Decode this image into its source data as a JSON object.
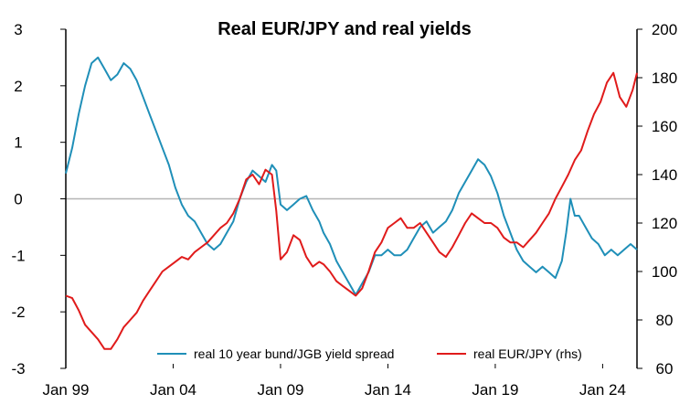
{
  "chart_data": {
    "type": "line",
    "title": "Real EUR/JPY and real yields",
    "x_tick_labels": [
      "Jan 99",
      "Jan 04",
      "Jan 09",
      "Jan 14",
      "Jan 19",
      "Jan 24"
    ],
    "x_range": [
      1999.0,
      2025.6
    ],
    "left_axis": {
      "range": [
        -3,
        3
      ],
      "ticks": [
        "3",
        "2",
        "1",
        "0",
        "-1",
        "-2",
        "-3"
      ]
    },
    "right_axis": {
      "range": [
        60,
        200
      ],
      "ticks": [
        "200",
        "180",
        "160",
        "140",
        "120",
        "100",
        "80",
        "60"
      ]
    },
    "zero_line": true,
    "legend_position": "bottom",
    "series": [
      {
        "name": "real 10 year bund/JGB yield spread",
        "axis": "left",
        "color": "#1f8fb8",
        "points": [
          [
            1999.0,
            0.45
          ],
          [
            1999.3,
            0.9
          ],
          [
            1999.6,
            1.5
          ],
          [
            1999.9,
            2.0
          ],
          [
            2000.2,
            2.4
          ],
          [
            2000.5,
            2.5
          ],
          [
            2000.8,
            2.3
          ],
          [
            2001.1,
            2.1
          ],
          [
            2001.4,
            2.2
          ],
          [
            2001.7,
            2.4
          ],
          [
            2002.0,
            2.3
          ],
          [
            2002.3,
            2.1
          ],
          [
            2002.6,
            1.8
          ],
          [
            2002.9,
            1.5
          ],
          [
            2003.2,
            1.2
          ],
          [
            2003.5,
            0.9
          ],
          [
            2003.8,
            0.6
          ],
          [
            2004.1,
            0.2
          ],
          [
            2004.4,
            -0.1
          ],
          [
            2004.7,
            -0.3
          ],
          [
            2005.0,
            -0.4
          ],
          [
            2005.3,
            -0.6
          ],
          [
            2005.6,
            -0.8
          ],
          [
            2005.9,
            -0.9
          ],
          [
            2006.2,
            -0.8
          ],
          [
            2006.5,
            -0.6
          ],
          [
            2006.8,
            -0.4
          ],
          [
            2007.1,
            0.0
          ],
          [
            2007.4,
            0.3
          ],
          [
            2007.7,
            0.5
          ],
          [
            2008.0,
            0.4
          ],
          [
            2008.3,
            0.3
          ],
          [
            2008.6,
            0.6
          ],
          [
            2008.8,
            0.5
          ],
          [
            2009.0,
            -0.1
          ],
          [
            2009.3,
            -0.2
          ],
          [
            2009.6,
            -0.1
          ],
          [
            2009.9,
            0.0
          ],
          [
            2010.2,
            0.05
          ],
          [
            2010.5,
            -0.2
          ],
          [
            2010.8,
            -0.4
          ],
          [
            2011.0,
            -0.6
          ],
          [
            2011.3,
            -0.8
          ],
          [
            2011.6,
            -1.1
          ],
          [
            2011.9,
            -1.3
          ],
          [
            2012.2,
            -1.5
          ],
          [
            2012.5,
            -1.7
          ],
          [
            2012.8,
            -1.5
          ],
          [
            2013.1,
            -1.3
          ],
          [
            2013.4,
            -1.0
          ],
          [
            2013.7,
            -1.0
          ],
          [
            2014.0,
            -0.9
          ],
          [
            2014.3,
            -1.0
          ],
          [
            2014.6,
            -1.0
          ],
          [
            2014.9,
            -0.9
          ],
          [
            2015.2,
            -0.7
          ],
          [
            2015.5,
            -0.5
          ],
          [
            2015.8,
            -0.4
          ],
          [
            2016.1,
            -0.6
          ],
          [
            2016.4,
            -0.5
          ],
          [
            2016.7,
            -0.4
          ],
          [
            2017.0,
            -0.2
          ],
          [
            2017.3,
            0.1
          ],
          [
            2017.6,
            0.3
          ],
          [
            2017.9,
            0.5
          ],
          [
            2018.2,
            0.7
          ],
          [
            2018.5,
            0.6
          ],
          [
            2018.8,
            0.4
          ],
          [
            2019.1,
            0.1
          ],
          [
            2019.4,
            -0.3
          ],
          [
            2019.7,
            -0.6
          ],
          [
            2020.0,
            -0.9
          ],
          [
            2020.3,
            -1.1
          ],
          [
            2020.6,
            -1.2
          ],
          [
            2020.9,
            -1.3
          ],
          [
            2021.2,
            -1.2
          ],
          [
            2021.5,
            -1.3
          ],
          [
            2021.8,
            -1.4
          ],
          [
            2022.1,
            -1.1
          ],
          [
            2022.3,
            -0.6
          ],
          [
            2022.5,
            0.0
          ],
          [
            2022.7,
            -0.3
          ],
          [
            2022.9,
            -0.3
          ],
          [
            2023.2,
            -0.5
          ],
          [
            2023.5,
            -0.7
          ],
          [
            2023.8,
            -0.8
          ],
          [
            2024.1,
            -1.0
          ],
          [
            2024.4,
            -0.9
          ],
          [
            2024.7,
            -1.0
          ],
          [
            2025.0,
            -0.9
          ],
          [
            2025.3,
            -0.8
          ],
          [
            2025.6,
            -0.9
          ]
        ]
      },
      {
        "name": "real EUR/JPY (rhs)",
        "axis": "right",
        "color": "#e01b1b",
        "points": [
          [
            1999.0,
            90
          ],
          [
            1999.3,
            89
          ],
          [
            1999.6,
            84
          ],
          [
            1999.9,
            78
          ],
          [
            2000.2,
            75
          ],
          [
            2000.5,
            72
          ],
          [
            2000.8,
            68
          ],
          [
            2001.1,
            68
          ],
          [
            2001.4,
            72
          ],
          [
            2001.7,
            77
          ],
          [
            2002.0,
            80
          ],
          [
            2002.3,
            83
          ],
          [
            2002.6,
            88
          ],
          [
            2002.9,
            92
          ],
          [
            2003.2,
            96
          ],
          [
            2003.5,
            100
          ],
          [
            2003.8,
            102
          ],
          [
            2004.1,
            104
          ],
          [
            2004.4,
            106
          ],
          [
            2004.7,
            105
          ],
          [
            2005.0,
            108
          ],
          [
            2005.3,
            110
          ],
          [
            2005.6,
            112
          ],
          [
            2005.9,
            115
          ],
          [
            2006.2,
            118
          ],
          [
            2006.5,
            120
          ],
          [
            2006.8,
            124
          ],
          [
            2007.1,
            130
          ],
          [
            2007.4,
            138
          ],
          [
            2007.7,
            140
          ],
          [
            2008.0,
            136
          ],
          [
            2008.3,
            142
          ],
          [
            2008.6,
            140
          ],
          [
            2008.8,
            125
          ],
          [
            2009.0,
            105
          ],
          [
            2009.3,
            108
          ],
          [
            2009.6,
            115
          ],
          [
            2009.9,
            113
          ],
          [
            2010.2,
            106
          ],
          [
            2010.5,
            102
          ],
          [
            2010.8,
            104
          ],
          [
            2011.0,
            103
          ],
          [
            2011.3,
            100
          ],
          [
            2011.6,
            96
          ],
          [
            2011.9,
            94
          ],
          [
            2012.2,
            92
          ],
          [
            2012.5,
            90
          ],
          [
            2012.8,
            93
          ],
          [
            2013.1,
            100
          ],
          [
            2013.4,
            108
          ],
          [
            2013.7,
            112
          ],
          [
            2014.0,
            118
          ],
          [
            2014.3,
            120
          ],
          [
            2014.6,
            122
          ],
          [
            2014.9,
            118
          ],
          [
            2015.2,
            118
          ],
          [
            2015.5,
            120
          ],
          [
            2015.8,
            116
          ],
          [
            2016.1,
            112
          ],
          [
            2016.4,
            108
          ],
          [
            2016.7,
            106
          ],
          [
            2017.0,
            110
          ],
          [
            2017.3,
            115
          ],
          [
            2017.6,
            120
          ],
          [
            2017.9,
            124
          ],
          [
            2018.2,
            122
          ],
          [
            2018.5,
            120
          ],
          [
            2018.8,
            120
          ],
          [
            2019.1,
            118
          ],
          [
            2019.4,
            114
          ],
          [
            2019.7,
            112
          ],
          [
            2020.0,
            112
          ],
          [
            2020.3,
            110
          ],
          [
            2020.6,
            113
          ],
          [
            2020.9,
            116
          ],
          [
            2021.2,
            120
          ],
          [
            2021.5,
            124
          ],
          [
            2021.8,
            130
          ],
          [
            2022.1,
            135
          ],
          [
            2022.4,
            140
          ],
          [
            2022.7,
            146
          ],
          [
            2023.0,
            150
          ],
          [
            2023.3,
            158
          ],
          [
            2023.6,
            165
          ],
          [
            2023.9,
            170
          ],
          [
            2024.2,
            178
          ],
          [
            2024.5,
            182
          ],
          [
            2024.8,
            172
          ],
          [
            2025.1,
            168
          ],
          [
            2025.4,
            175
          ],
          [
            2025.6,
            182
          ]
        ]
      }
    ]
  }
}
